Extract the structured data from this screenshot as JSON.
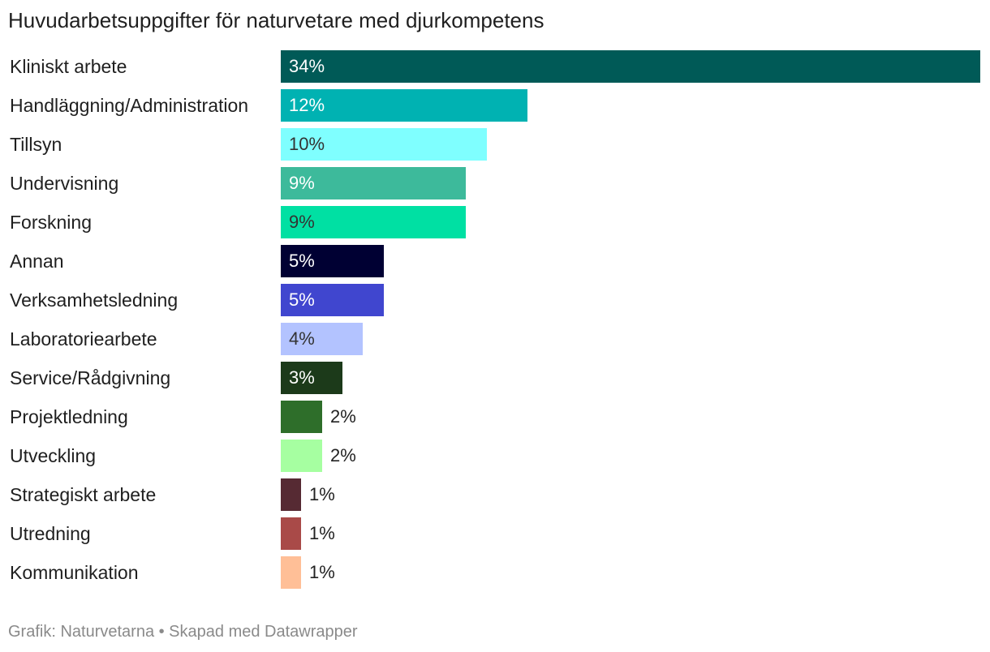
{
  "chart_data": {
    "type": "bar",
    "orientation": "horizontal",
    "title": "Huvudarbetsuppgifter för naturvetare med djurkompetens",
    "xlabel": "",
    "ylabel": "",
    "xlim": [
      0,
      34
    ],
    "grid": false,
    "categories": [
      "Kliniskt arbete",
      "Handläggning/Administration",
      "Tillsyn",
      "Undervisning",
      "Forskning",
      "Annan",
      "Verksamhetsledning",
      "Laboratoriearbete",
      "Service/Rådgivning",
      "Projektledning",
      "Utveckling",
      "Strategiskt arbete",
      "Utredning",
      "Kommunikation"
    ],
    "values": [
      34,
      12,
      10,
      9,
      9,
      5,
      5,
      4,
      3,
      2,
      2,
      1,
      1,
      1
    ],
    "value_labels": [
      "34%",
      "12%",
      "10%",
      "9%",
      "9%",
      "5%",
      "5%",
      "4%",
      "3%",
      "2%",
      "2%",
      "1%",
      "1%",
      "1%"
    ],
    "colors": [
      "#005a57",
      "#00b2b2",
      "#7fffff",
      "#3dba9b",
      "#00e0a3",
      "#000033",
      "#4046cf",
      "#b3c3ff",
      "#1c3a1a",
      "#2e6e2a",
      "#a6ffa1",
      "#562a33",
      "#a94a48",
      "#ffbf97"
    ],
    "label_colors": [
      "#ffffff",
      "#ffffff",
      "#333333",
      "#ffffff",
      "#333333",
      "#ffffff",
      "#ffffff",
      "#333333",
      "#ffffff",
      "#222222",
      "#222222",
      "#222222",
      "#222222",
      "#222222"
    ]
  },
  "footer": "Grafik: Naturvetarna • Skapad med Datawrapper"
}
